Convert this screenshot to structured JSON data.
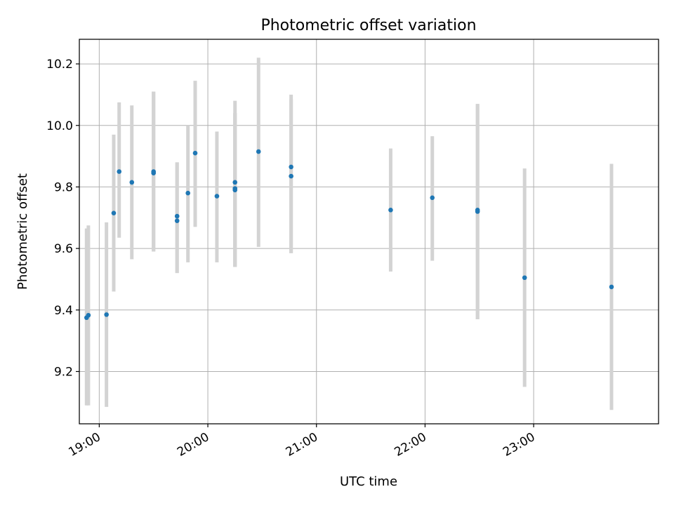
{
  "chart_data": {
    "type": "scatter",
    "title": "Photometric offset variation",
    "xlabel": "UTC time",
    "ylabel": "Photometric offset",
    "x_axis_kind": "time",
    "xlim": [
      "18:49",
      "24:09"
    ],
    "ylim": [
      9.03,
      10.28
    ],
    "x_ticks": [
      "19:00",
      "20:00",
      "21:00",
      "22:00",
      "23:00"
    ],
    "y_ticks": [
      9.2,
      9.4,
      9.6,
      9.8,
      10.0,
      10.2
    ],
    "y_tick_labels": [
      "9.2",
      "9.4",
      "9.6",
      "9.8",
      "10.0",
      "10.2"
    ],
    "grid": true,
    "legend": "none",
    "colors": {
      "points": "#1f77b4",
      "errorbars": "#d3d3d3",
      "grid": "#b0b0b0"
    },
    "series": [
      {
        "points": [
          {
            "x": "18:53",
            "y": 9.375,
            "yerr_low": 9.09,
            "yerr_high": 9.665
          },
          {
            "x": "18:54",
            "y": 9.383,
            "yerr_low": 9.09,
            "yerr_high": 9.675
          },
          {
            "x": "19:04",
            "y": 9.385,
            "yerr_low": 9.085,
            "yerr_high": 9.685
          },
          {
            "x": "19:08",
            "y": 9.715,
            "yerr_low": 9.46,
            "yerr_high": 9.97
          },
          {
            "x": "19:11",
            "y": 9.85,
            "yerr_low": 9.635,
            "yerr_high": 10.075
          },
          {
            "x": "19:18",
            "y": 9.815,
            "yerr_low": 9.565,
            "yerr_high": 10.065
          },
          {
            "x": "19:30",
            "y": 9.845,
            "yerr_low": 9.59,
            "yerr_high": 10.11
          },
          {
            "x": "19:30",
            "y": 9.85,
            "yerr_low": 9.59,
            "yerr_high": 10.11
          },
          {
            "x": "19:43",
            "y": 9.69,
            "yerr_low": 9.52,
            "yerr_high": 9.88
          },
          {
            "x": "19:43",
            "y": 9.705,
            "yerr_low": 9.52,
            "yerr_high": 9.88
          },
          {
            "x": "19:49",
            "y": 9.78,
            "yerr_low": 9.555,
            "yerr_high": 10.0
          },
          {
            "x": "19:53",
            "y": 9.91,
            "yerr_low": 9.67,
            "yerr_high": 10.145
          },
          {
            "x": "20:05",
            "y": 9.77,
            "yerr_low": 9.555,
            "yerr_high": 9.98
          },
          {
            "x": "20:15",
            "y": 9.815,
            "yerr_low": 9.54,
            "yerr_high": 10.08
          },
          {
            "x": "20:15",
            "y": 9.79,
            "yerr_low": 9.54,
            "yerr_high": 10.04
          },
          {
            "x": "20:15",
            "y": 9.795,
            "yerr_low": 9.54,
            "yerr_high": 10.04
          },
          {
            "x": "20:28",
            "y": 9.915,
            "yerr_low": 9.605,
            "yerr_high": 10.22
          },
          {
            "x": "20:46",
            "y": 9.865,
            "yerr_low": 9.585,
            "yerr_high": 10.1
          },
          {
            "x": "20:46",
            "y": 9.835,
            "yerr_low": 9.585,
            "yerr_high": 10.085
          },
          {
            "x": "21:41",
            "y": 9.725,
            "yerr_low": 9.525,
            "yerr_high": 9.925
          },
          {
            "x": "22:04",
            "y": 9.765,
            "yerr_low": 9.56,
            "yerr_high": 9.965
          },
          {
            "x": "22:29",
            "y": 9.72,
            "yerr_low": 9.37,
            "yerr_high": 10.07
          },
          {
            "x": "22:29",
            "y": 9.725,
            "yerr_low": 9.37,
            "yerr_high": 10.07
          },
          {
            "x": "22:55",
            "y": 9.505,
            "yerr_low": 9.15,
            "yerr_high": 9.86
          },
          {
            "x": "23:43",
            "y": 9.475,
            "yerr_low": 9.075,
            "yerr_high": 9.875
          }
        ]
      }
    ]
  }
}
